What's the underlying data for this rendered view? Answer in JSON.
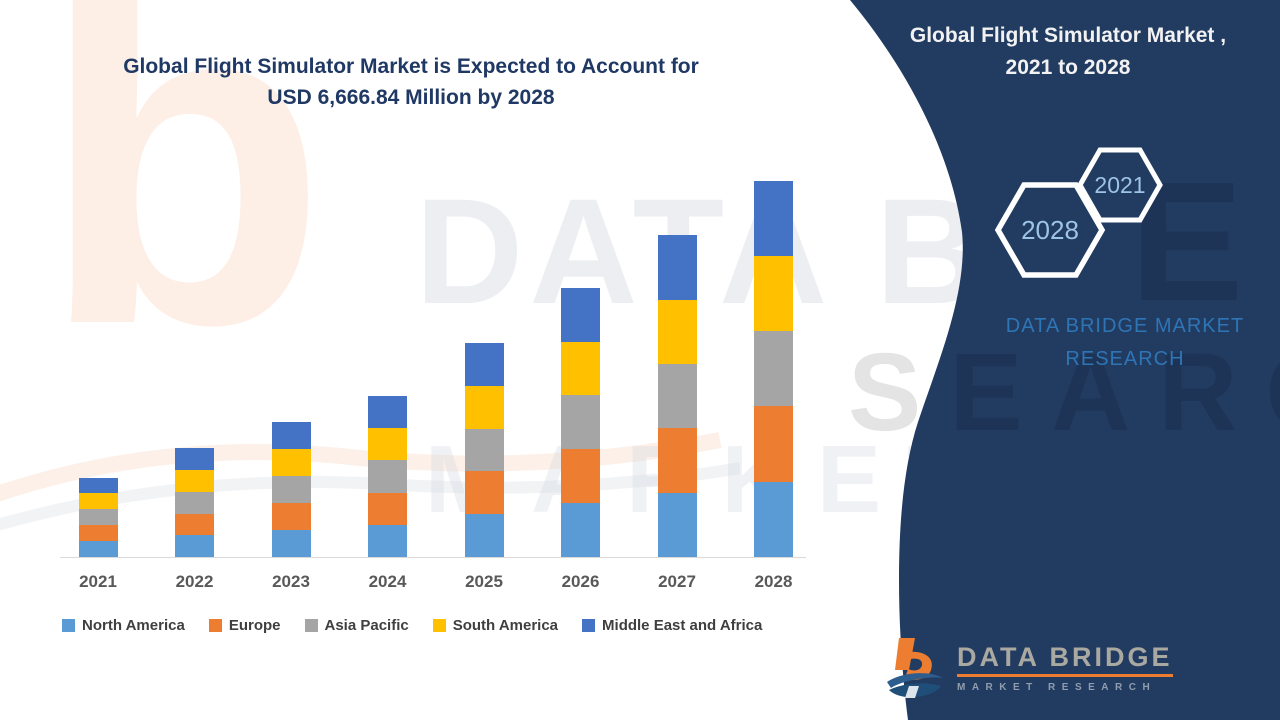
{
  "headline": {
    "line1": "Global Flight Simulator Market is Expected to Account for",
    "line2": "USD 6,666.84 Million by 2028",
    "color": "#1F3864"
  },
  "side_panel": {
    "background": "#223B61",
    "title_line1": "Global Flight Simulator Market ,",
    "title_line2": "2021 to 2028",
    "hexagon_back_label": "2028",
    "hexagon_front_label": "2021",
    "hexagon_label_color": "#9DC3E6",
    "brand_line1": "DATA BRIDGE MARKET",
    "brand_line2": "RESEARCH",
    "brand_color": "#2E75B6"
  },
  "chart_data": {
    "type": "bar",
    "stacked": true,
    "title": "Global Flight Simulator Market is Expected to Account for USD 6,666.84 Million by 2028",
    "unit": "USD Million",
    "xlabel": "",
    "ylabel": "",
    "ylim": [
      0,
      7050
    ],
    "grid": false,
    "legend_position": "bottom",
    "categories": [
      "2021",
      "2022",
      "2023",
      "2024",
      "2025",
      "2026",
      "2027",
      "2028"
    ],
    "series": [
      {
        "name": "North America",
        "color": "#5B9BD5",
        "values": [
          281.6,
          385.0,
          477.4,
          570.2,
          758.8,
          954.2,
          1140.4,
          1333.4
        ]
      },
      {
        "name": "Europe",
        "color": "#ED7D31",
        "values": [
          281.6,
          385.0,
          477.4,
          570.2,
          758.8,
          954.2,
          1140.4,
          1333.4
        ]
      },
      {
        "name": "Asia Pacific",
        "color": "#A5A5A5",
        "values": [
          281.6,
          385.0,
          477.4,
          570.2,
          758.8,
          954.2,
          1140.4,
          1333.4
        ]
      },
      {
        "name": "South America",
        "color": "#FFC000",
        "values": [
          281.6,
          385.0,
          477.4,
          570.2,
          758.8,
          954.2,
          1140.4,
          1333.4
        ]
      },
      {
        "name": "Middle East and Africa",
        "color": "#4472C4",
        "values": [
          281.6,
          385.0,
          477.4,
          570.2,
          758.8,
          954.2,
          1140.4,
          1333.4
        ]
      }
    ],
    "totals": [
      1408,
      1925,
      2387,
      2851,
      3794,
      4771,
      5702,
      6666.84
    ],
    "axis_color": "#D9D9D9",
    "category_label_color": "#595959"
  },
  "watermarks": {
    "big_letter": "b",
    "row1": "DATA BRIDGE",
    "row2": "MARKET RESEARCH",
    "panel_top_letter": "E",
    "panel_bottom_letters": "SEARCH"
  },
  "logo": {
    "brand": "DATA BRIDGE",
    "sub": "MARKET RESEARCH",
    "accent": "#ED7D31"
  }
}
